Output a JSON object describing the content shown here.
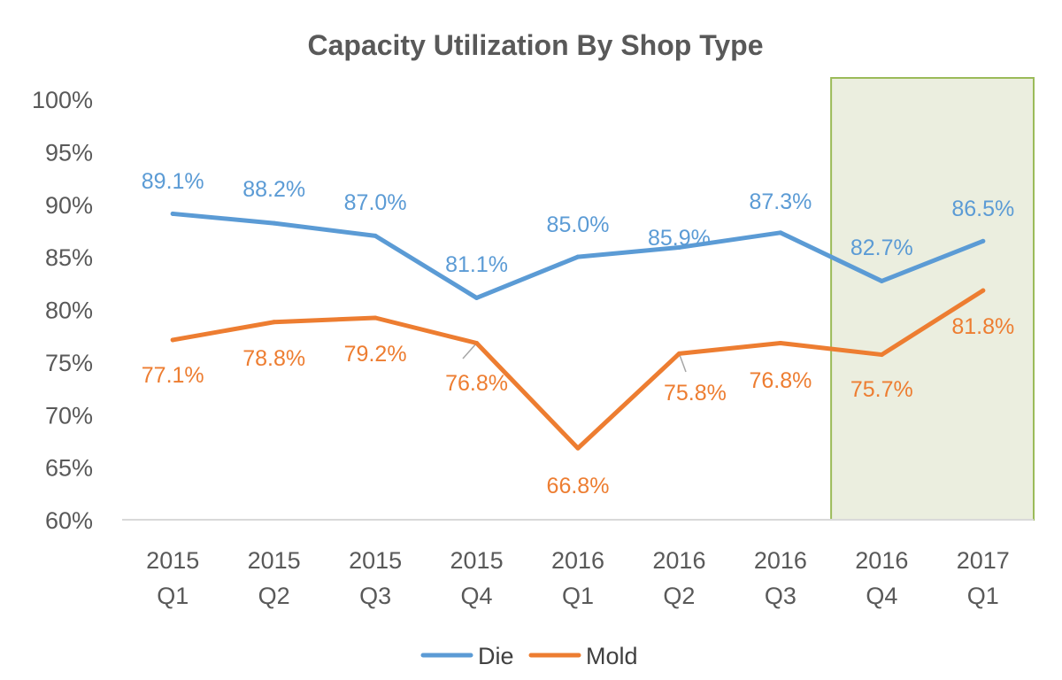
{
  "chart_data": {
    "type": "line",
    "title": "Capacity Utilization By Shop Type",
    "xlabel": "",
    "ylabel": "",
    "categories": [
      [
        "2015",
        "Q1"
      ],
      [
        "2015",
        "Q2"
      ],
      [
        "2015",
        "Q3"
      ],
      [
        "2015",
        "Q4"
      ],
      [
        "2016",
        "Q1"
      ],
      [
        "2016",
        "Q2"
      ],
      [
        "2016",
        "Q3"
      ],
      [
        "2016",
        "Q4"
      ],
      [
        "2017",
        "Q1"
      ]
    ],
    "ylim": [
      60,
      100
    ],
    "yticks": [
      "60%",
      "65%",
      "70%",
      "75%",
      "80%",
      "85%",
      "90%",
      "95%",
      "100%"
    ],
    "ytick_values": [
      60,
      65,
      70,
      75,
      80,
      85,
      90,
      95,
      100
    ],
    "grid": false,
    "legend_position": "bottom",
    "highlight": {
      "from_category": 7,
      "to_category": 8,
      "fill": "#ebeedf",
      "stroke": "#9bbb59"
    },
    "series": [
      {
        "name": "Die",
        "color": "#5b9bd5",
        "values": [
          89.1,
          88.2,
          87.0,
          81.1,
          85.0,
          85.9,
          87.3,
          82.7,
          86.5
        ],
        "labels": [
          "89.1%",
          "88.2%",
          "87.0%",
          "81.1%",
          "85.0%",
          "85.9%",
          "87.3%",
          "82.7%",
          "86.5%"
        ]
      },
      {
        "name": "Mold",
        "color": "#ed7d31",
        "values": [
          77.1,
          78.8,
          79.2,
          76.8,
          66.8,
          75.8,
          76.8,
          75.7,
          81.8
        ],
        "labels": [
          "77.1%",
          "78.8%",
          "79.2%",
          "76.8%",
          "66.8%",
          "75.8%",
          "76.8%",
          "75.7%",
          "81.8%"
        ]
      }
    ]
  }
}
